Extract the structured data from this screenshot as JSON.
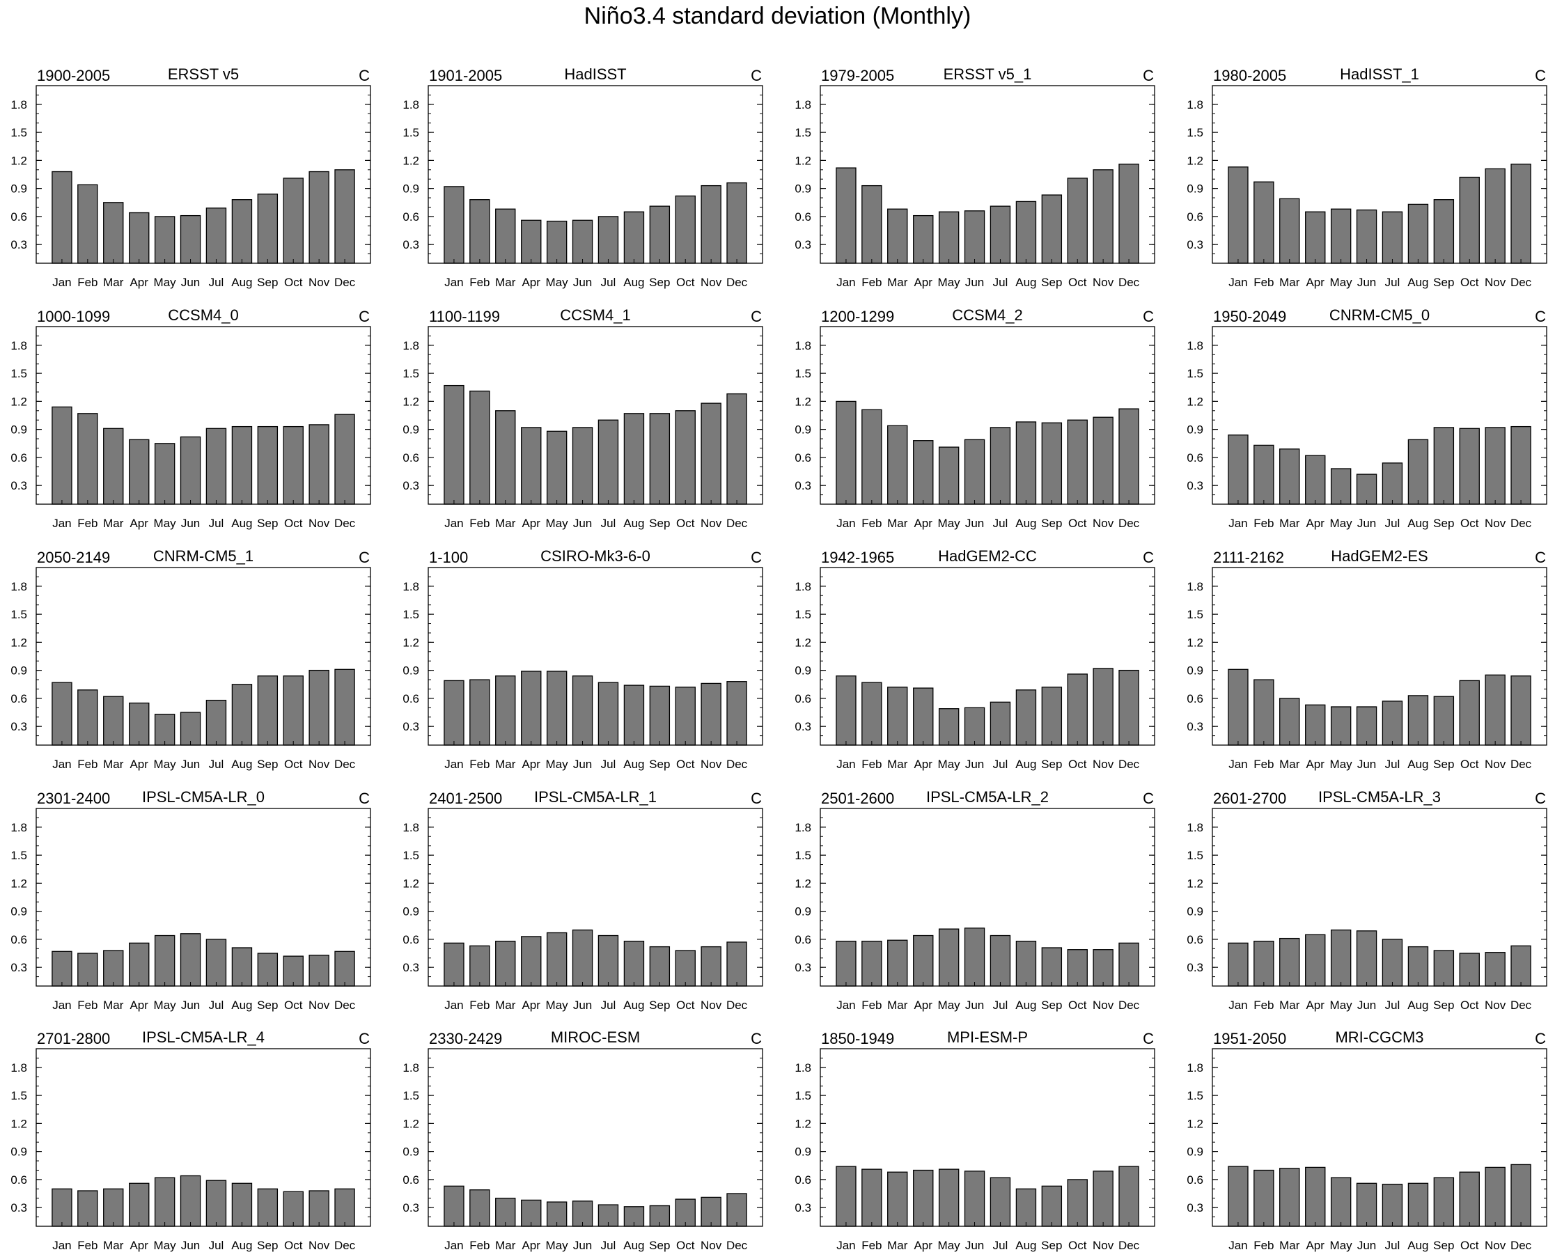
{
  "title": "Niño3.4 standard deviation (Monthly)",
  "chart_data": {
    "type": "bar",
    "title": "Niño3.4 standard deviation (Monthly)",
    "categories": [
      "Jan",
      "Feb",
      "Mar",
      "Apr",
      "May",
      "Jun",
      "Jul",
      "Aug",
      "Sep",
      "Oct",
      "Nov",
      "Dec"
    ],
    "y_ticks": [
      0.3,
      0.6,
      0.9,
      1.2,
      1.5,
      1.8
    ],
    "y_tick_labels": [
      "0.3",
      "0.6",
      "0.9",
      "1.2",
      "1.5",
      "1.8"
    ],
    "ylim": [
      0.1,
      2.0
    ],
    "bar_color": "#7a7a7a",
    "panels": [
      {
        "period": "1900-2005",
        "name": "ERSST v5",
        "unit": "C",
        "values": [
          1.08,
          0.94,
          0.75,
          0.64,
          0.6,
          0.61,
          0.69,
          0.78,
          0.84,
          1.01,
          1.08,
          1.1
        ]
      },
      {
        "period": "1901-2005",
        "name": "HadISST",
        "unit": "C",
        "values": [
          0.92,
          0.78,
          0.68,
          0.56,
          0.55,
          0.56,
          0.6,
          0.65,
          0.71,
          0.82,
          0.93,
          0.96
        ]
      },
      {
        "period": "1979-2005",
        "name": "ERSST v5_1",
        "unit": "C",
        "values": [
          1.12,
          0.93,
          0.68,
          0.61,
          0.65,
          0.66,
          0.71,
          0.76,
          0.83,
          1.01,
          1.1,
          1.16
        ]
      },
      {
        "period": "1980-2005",
        "name": "HadISST_1",
        "unit": "C",
        "values": [
          1.13,
          0.97,
          0.79,
          0.65,
          0.68,
          0.67,
          0.65,
          0.73,
          0.78,
          1.02,
          1.11,
          1.16
        ]
      },
      {
        "period": "1000-1099",
        "name": "CCSM4_0",
        "unit": "C",
        "values": [
          1.14,
          1.07,
          0.91,
          0.79,
          0.75,
          0.82,
          0.91,
          0.93,
          0.93,
          0.93,
          0.95,
          1.06
        ]
      },
      {
        "period": "1100-1199",
        "name": "CCSM4_1",
        "unit": "C",
        "values": [
          1.37,
          1.31,
          1.1,
          0.92,
          0.88,
          0.92,
          1.0,
          1.07,
          1.07,
          1.1,
          1.18,
          1.28
        ]
      },
      {
        "period": "1200-1299",
        "name": "CCSM4_2",
        "unit": "C",
        "values": [
          1.2,
          1.11,
          0.94,
          0.78,
          0.71,
          0.79,
          0.92,
          0.98,
          0.97,
          1.0,
          1.03,
          1.12
        ]
      },
      {
        "period": "1950-2049",
        "name": "CNRM-CM5_0",
        "unit": "C",
        "values": [
          0.84,
          0.73,
          0.69,
          0.62,
          0.48,
          0.42,
          0.54,
          0.79,
          0.92,
          0.91,
          0.92,
          0.93
        ]
      },
      {
        "period": "2050-2149",
        "name": "CNRM-CM5_1",
        "unit": "C",
        "values": [
          0.77,
          0.69,
          0.62,
          0.55,
          0.43,
          0.45,
          0.58,
          0.75,
          0.84,
          0.84,
          0.9,
          0.91
        ]
      },
      {
        "period": "1-100",
        "name": "CSIRO-Mk3-6-0",
        "unit": "C",
        "values": [
          0.79,
          0.8,
          0.84,
          0.89,
          0.89,
          0.84,
          0.77,
          0.74,
          0.73,
          0.72,
          0.76,
          0.78
        ]
      },
      {
        "period": "1942-1965",
        "name": "HadGEM2-CC",
        "unit": "C",
        "values": [
          0.84,
          0.77,
          0.72,
          0.71,
          0.49,
          0.5,
          0.56,
          0.69,
          0.72,
          0.86,
          0.92,
          0.9
        ]
      },
      {
        "period": "2111-2162",
        "name": "HadGEM2-ES",
        "unit": "C",
        "values": [
          0.91,
          0.8,
          0.6,
          0.53,
          0.51,
          0.51,
          0.57,
          0.63,
          0.62,
          0.79,
          0.85,
          0.84
        ]
      },
      {
        "period": "2301-2400",
        "name": "IPSL-CM5A-LR_0",
        "unit": "C",
        "values": [
          0.47,
          0.45,
          0.48,
          0.56,
          0.64,
          0.66,
          0.6,
          0.51,
          0.45,
          0.42,
          0.43,
          0.47
        ]
      },
      {
        "period": "2401-2500",
        "name": "IPSL-CM5A-LR_1",
        "unit": "C",
        "values": [
          0.56,
          0.53,
          0.58,
          0.63,
          0.67,
          0.7,
          0.64,
          0.58,
          0.52,
          0.48,
          0.52,
          0.57
        ]
      },
      {
        "period": "2501-2600",
        "name": "IPSL-CM5A-LR_2",
        "unit": "C",
        "values": [
          0.58,
          0.58,
          0.59,
          0.64,
          0.71,
          0.72,
          0.64,
          0.58,
          0.51,
          0.49,
          0.49,
          0.56
        ]
      },
      {
        "period": "2601-2700",
        "name": "IPSL-CM5A-LR_3",
        "unit": "C",
        "values": [
          0.56,
          0.58,
          0.61,
          0.65,
          0.7,
          0.69,
          0.6,
          0.52,
          0.48,
          0.45,
          0.46,
          0.53
        ]
      },
      {
        "period": "2701-2800",
        "name": "IPSL-CM5A-LR_4",
        "unit": "C",
        "values": [
          0.5,
          0.48,
          0.5,
          0.56,
          0.62,
          0.64,
          0.59,
          0.56,
          0.5,
          0.47,
          0.48,
          0.5
        ]
      },
      {
        "period": "2330-2429",
        "name": "MIROC-ESM",
        "unit": "C",
        "values": [
          0.53,
          0.49,
          0.4,
          0.38,
          0.36,
          0.37,
          0.33,
          0.31,
          0.32,
          0.39,
          0.41,
          0.45
        ]
      },
      {
        "period": "1850-1949",
        "name": "MPI-ESM-P",
        "unit": "C",
        "values": [
          0.74,
          0.71,
          0.68,
          0.7,
          0.71,
          0.69,
          0.62,
          0.5,
          0.53,
          0.6,
          0.69,
          0.74
        ]
      },
      {
        "period": "1951-2050",
        "name": "MRI-CGCM3",
        "unit": "C",
        "values": [
          0.74,
          0.7,
          0.72,
          0.73,
          0.62,
          0.56,
          0.55,
          0.56,
          0.62,
          0.68,
          0.73,
          0.76
        ]
      }
    ]
  }
}
